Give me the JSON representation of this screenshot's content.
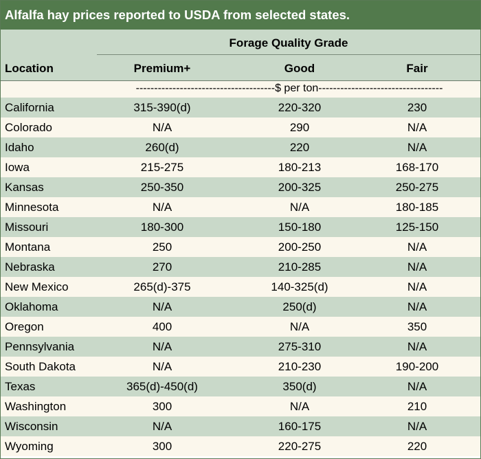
{
  "title": "Alfalfa hay prices reported to USDA from selected states.",
  "header": {
    "group_label": "Forage Quality Grade",
    "location_label": "Location",
    "premium_label": "Premium+",
    "good_label": "Good",
    "fair_label": "Fair"
  },
  "units": "--------------------------------------$ per ton----------------------------------",
  "rows": [
    {
      "location": "California",
      "premium": "315-390(d)",
      "good": "220-320",
      "fair": "230"
    },
    {
      "location": "Colorado",
      "premium": "N/A",
      "good": "290",
      "fair": "N/A"
    },
    {
      "location": "Idaho",
      "premium": "260(d)",
      "good": "220",
      "fair": "N/A"
    },
    {
      "location": "Iowa",
      "premium": "215-275",
      "good": "180-213",
      "fair": "168-170"
    },
    {
      "location": "Kansas",
      "premium": "250-350",
      "good": "200-325",
      "fair": "250-275"
    },
    {
      "location": "Minnesota",
      "premium": "N/A",
      "good": "N/A",
      "fair": "180-185"
    },
    {
      "location": "Missouri",
      "premium": "180-300",
      "good": "150-180",
      "fair": "125-150"
    },
    {
      "location": "Montana",
      "premium": "250",
      "good": "200-250",
      "fair": "N/A"
    },
    {
      "location": "Nebraska",
      "premium": "270",
      "good": "210-285",
      "fair": "N/A"
    },
    {
      "location": "New Mexico",
      "premium": "265(d)-375",
      "good": "140-325(d)",
      "fair": "N/A"
    },
    {
      "location": "Oklahoma",
      "premium": "N/A",
      "good": "250(d)",
      "fair": "N/A"
    },
    {
      "location": "Oregon",
      "premium": "400",
      "good": "N/A",
      "fair": "350"
    },
    {
      "location": "Pennsylvania",
      "premium": "N/A",
      "good": "275-310",
      "fair": "N/A"
    },
    {
      "location": "South Dakota",
      "premium": "N/A",
      "good": "210-230",
      "fair": "190-200"
    },
    {
      "location": "Texas",
      "premium": "365(d)-450(d)",
      "good": "350(d)",
      "fair": "N/A"
    },
    {
      "location": "Washington",
      "premium": "300",
      "good": "N/A",
      "fair": "210"
    },
    {
      "location": "Wisconsin",
      "premium": "N/A",
      "good": "160-175",
      "fair": "N/A"
    },
    {
      "location": "Wyoming",
      "premium": "300",
      "good": "220-275",
      "fair": "220"
    }
  ],
  "colors": {
    "title_bg": "#527a4c",
    "shade_row": "#c9d9c9",
    "plain_row": "#fbf7ec"
  }
}
